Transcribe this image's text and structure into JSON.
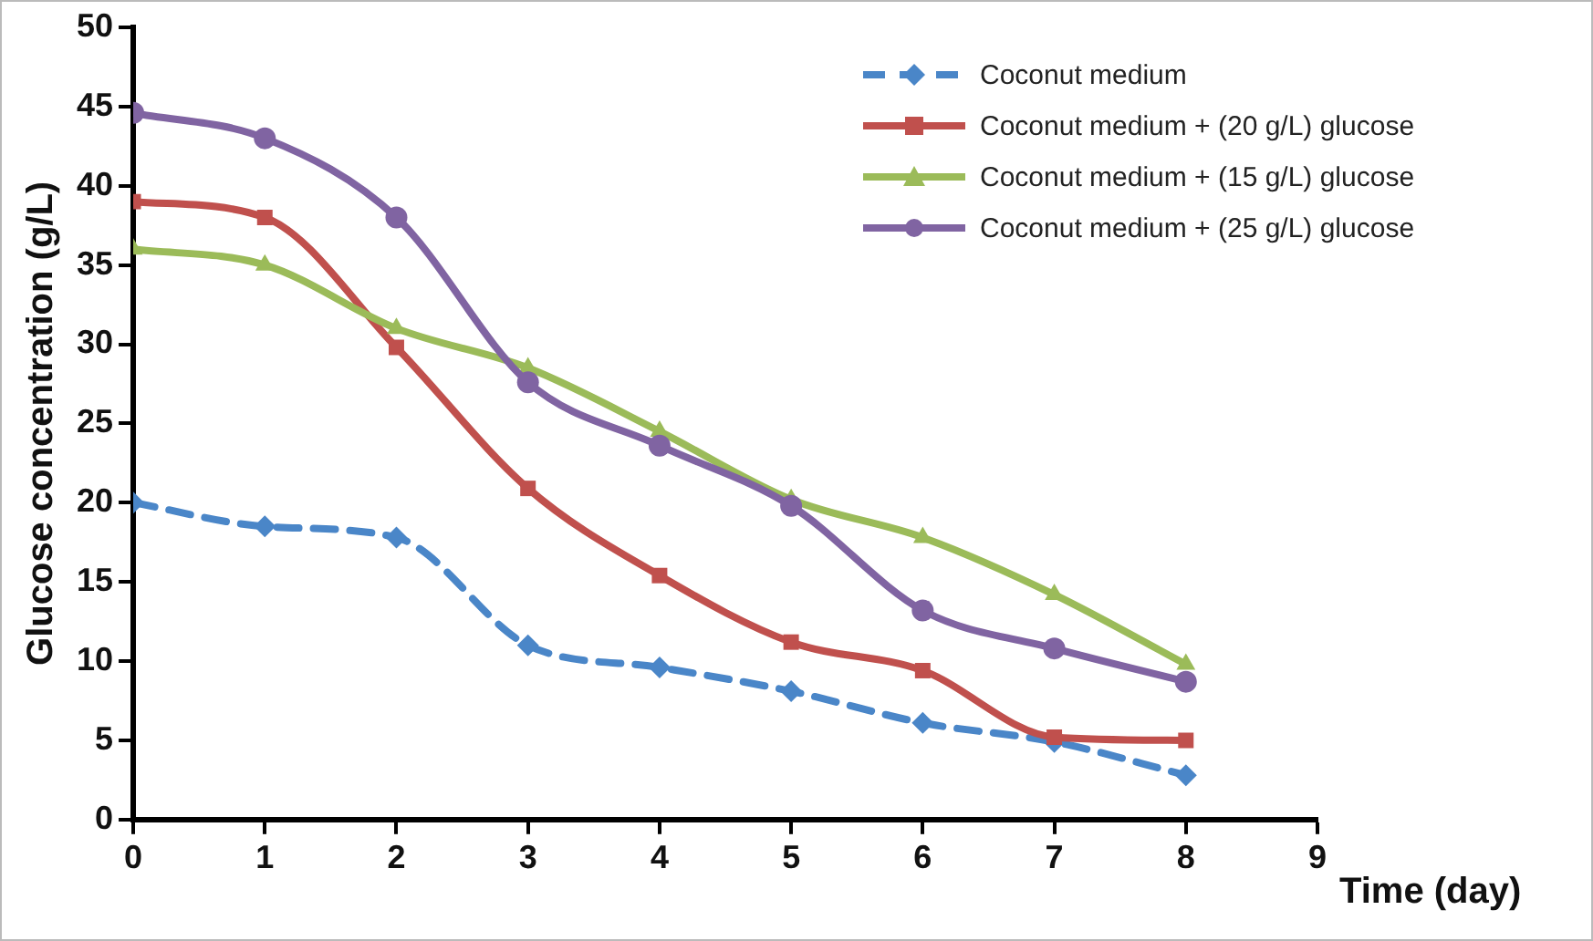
{
  "chart_data": {
    "type": "line",
    "xlabel": "Time (day)",
    "ylabel": "Glucose concentration (g/L)",
    "x": [
      0,
      1,
      2,
      3,
      4,
      5,
      6,
      7,
      8
    ],
    "xlim": [
      0,
      9
    ],
    "xticks": [
      0,
      1,
      2,
      3,
      4,
      5,
      6,
      7,
      8,
      9
    ],
    "ylim": [
      0,
      50
    ],
    "yticks": [
      0,
      5,
      10,
      15,
      20,
      25,
      30,
      35,
      40,
      45,
      50
    ],
    "grid": false,
    "legend": "top right",
    "series": [
      {
        "name": "Coconut medium",
        "color": "#4a86c8",
        "marker": "diamond",
        "line_style": "dashed",
        "values": [
          20,
          18.5,
          17.8,
          11,
          9.6,
          8.1,
          6.1,
          4.9,
          2.8
        ]
      },
      {
        "name": "Coconut medium + (20 g/L) glucose",
        "color": "#c0504d",
        "marker": "square",
        "line_style": "solid",
        "values": [
          39,
          38,
          29.8,
          20.9,
          15.4,
          11.2,
          9.4,
          5.2,
          5
        ]
      },
      {
        "name": "Coconut medium + (15 g/L) glucose",
        "color": "#9bbb59",
        "marker": "triangle",
        "line_style": "solid",
        "values": [
          36,
          35,
          31,
          28.5,
          24.5,
          20.2,
          17.8,
          14.2,
          9.8
        ]
      },
      {
        "name": "Coconut medium + (25 g/L) glucose",
        "color": "#8064a2",
        "marker": "circle",
        "line_style": "solid",
        "values": [
          44.6,
          43,
          38,
          27.6,
          23.6,
          19.8,
          13.2,
          10.8,
          8.7
        ]
      }
    ]
  }
}
